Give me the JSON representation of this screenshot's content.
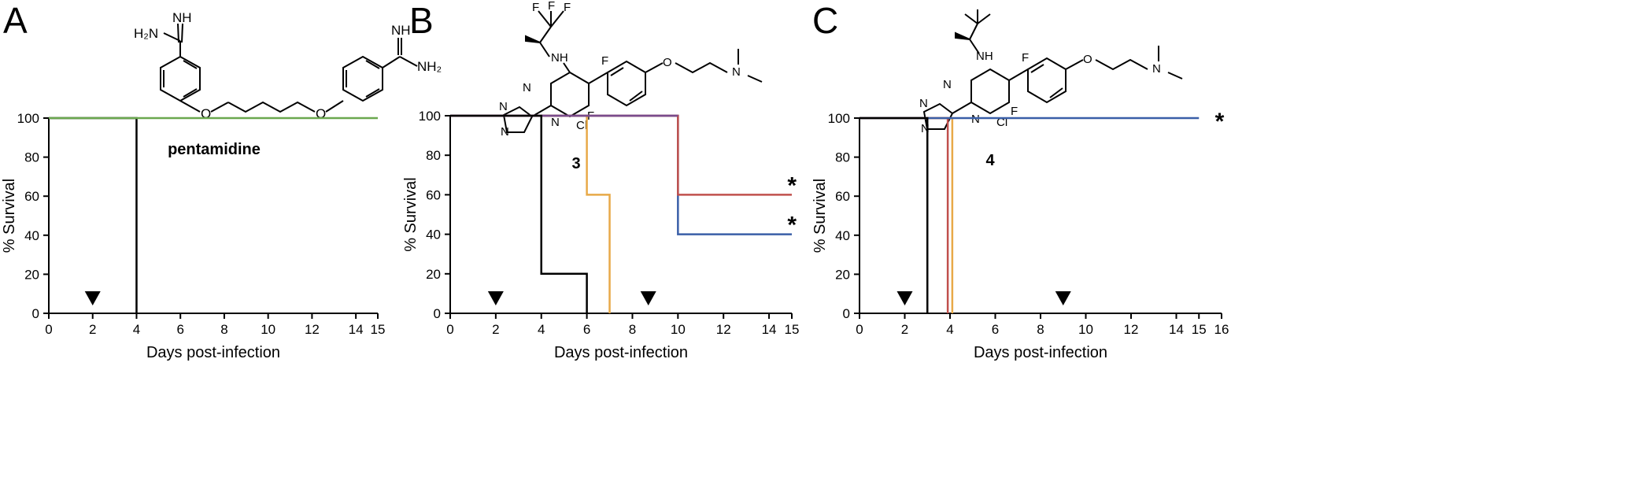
{
  "chart_data": [
    {
      "panel_label": "A",
      "compound_label": "pentamidine",
      "structure_text": [
        "NH",
        "H₂N",
        "O",
        "O",
        "NH",
        "NH₂"
      ],
      "type": "line",
      "step": true,
      "xlabel": "Days post-infection",
      "ylabel": "% Survival",
      "xlim": [
        0,
        15
      ],
      "ylim": [
        0,
        100
      ],
      "xticks": [
        0,
        2,
        4,
        6,
        8,
        10,
        12,
        14,
        15
      ],
      "yticks": [
        0,
        20,
        40,
        60,
        80,
        100
      ],
      "grid": false,
      "series": [
        {
          "color": "#000000",
          "x": [
            0,
            4,
            4
          ],
          "y": [
            100,
            100,
            0
          ]
        },
        {
          "color": "#6aa84f",
          "x": [
            0,
            15
          ],
          "y": [
            100,
            100
          ]
        }
      ],
      "dosing_markers": [
        2
      ],
      "significance": []
    },
    {
      "panel_label": "B",
      "compound_label": "3",
      "structure_text": [
        "F",
        "F",
        "F",
        "NH",
        "F",
        "O",
        "N",
        "N",
        "N",
        "N",
        "N",
        "F",
        "Cl"
      ],
      "type": "line",
      "step": true,
      "xlabel": "Days post-infection",
      "ylabel": "% Survival",
      "xlim": [
        0,
        15
      ],
      "ylim": [
        0,
        100
      ],
      "xticks": [
        0,
        2,
        4,
        6,
        8,
        10,
        12,
        14,
        15
      ],
      "yticks": [
        0,
        20,
        40,
        60,
        80,
        100
      ],
      "grid": false,
      "series": [
        {
          "color": "#e8a948",
          "x": [
            0,
            6,
            6,
            7,
            7
          ],
          "y": [
            100,
            100,
            60,
            60,
            0
          ]
        },
        {
          "color": "#3a5fa8",
          "x": [
            0,
            10,
            10,
            15
          ],
          "y": [
            100,
            100,
            40,
            40
          ]
        },
        {
          "color": "#c0504d",
          "x": [
            0,
            10,
            10,
            15
          ],
          "y": [
            100,
            100,
            60,
            60
          ]
        },
        {
          "color": "#7a4b8c",
          "x": [
            0,
            10
          ],
          "y": [
            100,
            100
          ]
        },
        {
          "color": "#000000",
          "x": [
            0,
            4,
            4,
            6,
            6
          ],
          "y": [
            100,
            100,
            20,
            20,
            0
          ]
        }
      ],
      "dosing_markers": [
        2,
        8.7
      ],
      "significance": [
        {
          "x": 15,
          "y": 60,
          "text": "*"
        },
        {
          "x": 15,
          "y": 40,
          "text": "*"
        }
      ]
    },
    {
      "panel_label": "C",
      "compound_label": "4",
      "structure_text": [
        "NH",
        "F",
        "O",
        "N",
        "N",
        "N",
        "N",
        "N",
        "F",
        "Cl"
      ],
      "type": "line",
      "step": true,
      "xlabel": "Days post-infection",
      "ylabel": "% Survival",
      "xlim": [
        0,
        16
      ],
      "ylim": [
        0,
        100
      ],
      "xticks": [
        0,
        2,
        4,
        6,
        8,
        10,
        12,
        14,
        15,
        16
      ],
      "yticks": [
        0,
        20,
        40,
        60,
        80,
        100
      ],
      "grid": false,
      "series": [
        {
          "color": "#e8a948",
          "x": [
            0,
            4.1,
            4.1
          ],
          "y": [
            100,
            100,
            0
          ]
        },
        {
          "color": "#c0504d",
          "x": [
            0,
            3.9,
            3.9
          ],
          "y": [
            100,
            100,
            0
          ]
        },
        {
          "color": "#3a5fa8",
          "x": [
            0,
            15
          ],
          "y": [
            100,
            100
          ]
        },
        {
          "color": "#000000",
          "x": [
            0,
            3,
            3
          ],
          "y": [
            100,
            100,
            0
          ]
        }
      ],
      "dosing_markers": [
        2,
        9
      ],
      "significance": [
        {
          "x": 15,
          "y": 100,
          "text": "*"
        }
      ]
    }
  ]
}
